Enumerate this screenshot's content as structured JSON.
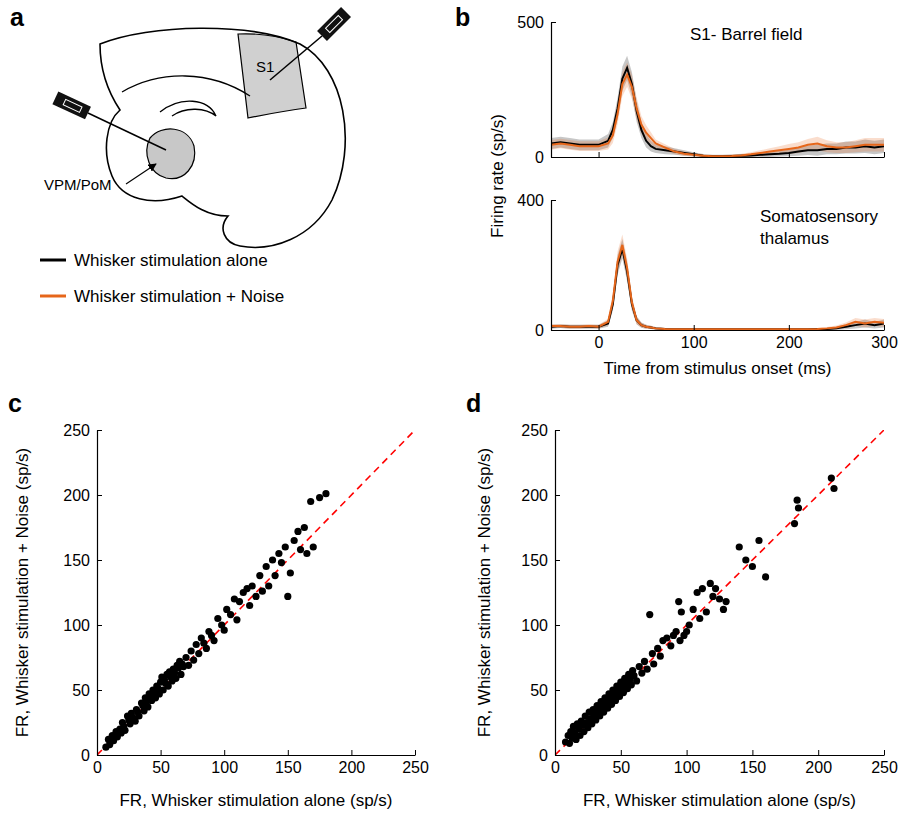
{
  "chart_data": [
    {
      "type": "line",
      "panel": "b",
      "annotation": [
        "S1- Barrel field"
      ],
      "y_label": "Firing rate (sp/s)",
      "x": [
        -50,
        -40,
        -30,
        -20,
        -10,
        0,
        10,
        15,
        20,
        25,
        30,
        35,
        40,
        45,
        50,
        55,
        60,
        70,
        80,
        90,
        100,
        110,
        120,
        130,
        140,
        150,
        160,
        170,
        180,
        190,
        200,
        210,
        220,
        230,
        240,
        250,
        260,
        270,
        280,
        290,
        300
      ],
      "xlim": [
        -50,
        300
      ],
      "xticks": [
        0,
        100,
        200,
        300
      ],
      "ylim": [
        0,
        500
      ],
      "yticks": [
        0,
        500
      ],
      "tick_labels": "y",
      "series": [
        {
          "name": "Whisker stimulation alone",
          "color": "#000000",
          "values": [
            50,
            55,
            50,
            45,
            45,
            45,
            60,
            100,
            180,
            290,
            330,
            270,
            170,
            100,
            60,
            40,
            30,
            25,
            20,
            15,
            10,
            5,
            3,
            3,
            4,
            5,
            6,
            8,
            10,
            12,
            15,
            20,
            25,
            25,
            30,
            30,
            35,
            35,
            40,
            35,
            40
          ],
          "error": [
            20,
            20,
            20,
            20,
            20,
            20,
            25,
            30,
            40,
            45,
            45,
            45,
            40,
            30,
            25,
            20,
            15,
            15,
            12,
            10,
            8,
            6,
            5,
            5,
            5,
            6,
            6,
            8,
            10,
            10,
            12,
            15,
            18,
            20,
            20,
            20,
            22,
            22,
            25,
            25,
            25
          ]
        },
        {
          "name": "Whisker stimulation + Noise",
          "color": "#e6661a",
          "values": [
            45,
            50,
            45,
            40,
            40,
            40,
            50,
            80,
            160,
            270,
            305,
            260,
            180,
            120,
            90,
            70,
            50,
            35,
            20,
            12,
            8,
            5,
            3,
            3,
            4,
            6,
            10,
            15,
            20,
            25,
            30,
            35,
            45,
            50,
            40,
            35,
            35,
            40,
            45,
            45,
            45
          ],
          "error": [
            18,
            18,
            18,
            18,
            18,
            18,
            22,
            28,
            38,
            45,
            45,
            45,
            40,
            32,
            28,
            22,
            15,
            12,
            10,
            8,
            6,
            5,
            4,
            4,
            5,
            6,
            8,
            10,
            12,
            15,
            18,
            20,
            22,
            25,
            22,
            20,
            20,
            22,
            25,
            25,
            25
          ]
        }
      ]
    },
    {
      "type": "line",
      "annotation": [
        "Somatosensory",
        "thalamus"
      ],
      "x_label": "Time from stimulus onset (ms)",
      "x": [
        -50,
        -40,
        -30,
        -20,
        -10,
        0,
        10,
        15,
        20,
        25,
        30,
        35,
        40,
        45,
        50,
        55,
        60,
        70,
        80,
        90,
        100,
        110,
        120,
        130,
        140,
        150,
        160,
        170,
        180,
        190,
        200,
        210,
        220,
        230,
        240,
        250,
        260,
        270,
        280,
        290,
        300
      ],
      "xlim": [
        -50,
        300
      ],
      "xticks": [
        0,
        100,
        200,
        300
      ],
      "ylim": [
        0,
        400
      ],
      "yticks": [
        0,
        400
      ],
      "series": [
        {
          "color": "#000000",
          "values": [
            10,
            12,
            10,
            10,
            10,
            10,
            20,
            80,
            200,
            250,
            180,
            80,
            30,
            15,
            10,
            8,
            5,
            3,
            2,
            2,
            2,
            2,
            2,
            2,
            2,
            2,
            2,
            2,
            2,
            2,
            2,
            2,
            2,
            3,
            3,
            5,
            10,
            15,
            20,
            15,
            20
          ],
          "error": [
            6,
            6,
            6,
            6,
            6,
            6,
            10,
            20,
            30,
            30,
            30,
            20,
            12,
            8,
            6,
            5,
            4,
            3,
            2,
            2,
            2,
            2,
            2,
            2,
            2,
            2,
            2,
            2,
            2,
            2,
            2,
            2,
            2,
            3,
            3,
            5,
            8,
            10,
            12,
            10,
            12
          ]
        },
        {
          "color": "#e6661a",
          "values": [
            12,
            12,
            10,
            10,
            12,
            10,
            25,
            90,
            210,
            262,
            190,
            85,
            30,
            15,
            10,
            8,
            5,
            3,
            2,
            2,
            2,
            2,
            2,
            2,
            2,
            2,
            2,
            2,
            2,
            2,
            2,
            2,
            2,
            3,
            5,
            8,
            15,
            25,
            20,
            25,
            22
          ],
          "error": [
            6,
            6,
            6,
            6,
            6,
            6,
            10,
            22,
            32,
            32,
            30,
            20,
            12,
            8,
            6,
            5,
            4,
            3,
            2,
            2,
            2,
            2,
            2,
            2,
            2,
            2,
            2,
            2,
            2,
            2,
            2,
            2,
            2,
            3,
            4,
            6,
            8,
            12,
            12,
            12,
            12
          ]
        }
      ]
    },
    {
      "type": "scatter",
      "panel": "c",
      "x_label": "FR, Whisker stimulation alone (sp/s)",
      "y_label": "FR, Whisker stimulation  + Noise (sp/s)",
      "xlim": [
        0,
        250
      ],
      "xticks": [
        0,
        50,
        100,
        150,
        200,
        250
      ],
      "ylim": [
        0,
        250
      ],
      "yticks": [
        0,
        50,
        100,
        150,
        200,
        250
      ],
      "series": [
        {
          "type": "scatter",
          "color": "#000000",
          "marker": "circle",
          "x": [
            7,
            9,
            10,
            12,
            13,
            15,
            16,
            18,
            19,
            20,
            21,
            22,
            24,
            25,
            26,
            27,
            28,
            30,
            31,
            32,
            33,
            35,
            36,
            37,
            38,
            39,
            40,
            41,
            42,
            43,
            44,
            45,
            46,
            47,
            48,
            49,
            50,
            51,
            52,
            53,
            54,
            55,
            56,
            57,
            58,
            59,
            60,
            61,
            62,
            63,
            64,
            65,
            66,
            67,
            68,
            70,
            72,
            74,
            76,
            78,
            80,
            82,
            84,
            86,
            88,
            90,
            92,
            95,
            98,
            100,
            102,
            105,
            108,
            110,
            112,
            115,
            118,
            120,
            122,
            125,
            128,
            130,
            133,
            135,
            138,
            140,
            143,
            145,
            148,
            150,
            152,
            155,
            158,
            160,
            163,
            165,
            168,
            170,
            175,
            180
          ],
          "values": [
            6,
            12,
            8,
            15,
            11,
            18,
            14,
            20,
            17,
            25,
            22,
            19,
            30,
            27,
            24,
            32,
            29,
            26,
            35,
            33,
            30,
            40,
            38,
            34,
            44,
            41,
            37,
            47,
            45,
            42,
            50,
            48,
            44,
            53,
            51,
            47,
            56,
            60,
            50,
            58,
            55,
            62,
            53,
            64,
            60,
            57,
            66,
            63,
            59,
            69,
            67,
            72,
            62,
            70,
            68,
            75,
            69,
            80,
            73,
            85,
            78,
            90,
            86,
            82,
            95,
            92,
            88,
            105,
            100,
            96,
            112,
            108,
            120,
            104,
            118,
            125,
            128,
            115,
            130,
            122,
            138,
            126,
            145,
            130,
            150,
            138,
            155,
            148,
            160,
            122,
            140,
            165,
            172,
            158,
            175,
            155,
            195,
            160,
            198,
            201
          ]
        },
        {
          "type": "line",
          "color": "#ff0000",
          "line_style": "dashed",
          "x": [
            0,
            250
          ],
          "values": [
            0,
            250
          ]
        }
      ]
    },
    {
      "type": "scatter",
      "panel": "d",
      "x_label": "FR, Whisker stimulation alone (sp/s)",
      "y_label": "FR, Whisker stimulation + Noise (sp/s)",
      "xlim": [
        0,
        250
      ],
      "xticks": [
        0,
        50,
        100,
        150,
        200,
        250
      ],
      "ylim": [
        0,
        250
      ],
      "yticks": [
        0,
        50,
        100,
        150,
        200,
        250
      ],
      "series": [
        {
          "type": "scatter",
          "color": "#000000",
          "marker": "circle",
          "x": [
            8,
            10,
            11,
            12,
            13,
            14,
            15,
            16,
            17,
            18,
            19,
            20,
            21,
            22,
            23,
            24,
            25,
            26,
            27,
            28,
            29,
            30,
            31,
            32,
            33,
            34,
            35,
            36,
            37,
            38,
            39,
            40,
            41,
            42,
            43,
            44,
            45,
            46,
            47,
            48,
            49,
            50,
            51,
            52,
            53,
            54,
            55,
            56,
            57,
            58,
            59,
            60,
            62,
            64,
            66,
            68,
            70,
            72,
            74,
            75,
            78,
            80,
            82,
            85,
            88,
            90,
            92,
            94,
            95,
            96,
            98,
            100,
            102,
            105,
            108,
            110,
            112,
            115,
            118,
            120,
            122,
            125,
            128,
            130,
            140,
            145,
            150,
            155,
            160,
            182,
            184,
            185,
            210,
            212
          ],
          "values": [
            10,
            15,
            9,
            18,
            13,
            22,
            17,
            12,
            24,
            20,
            15,
            26,
            23,
            18,
            30,
            25,
            21,
            33,
            28,
            24,
            35,
            31,
            27,
            38,
            34,
            30,
            41,
            37,
            33,
            44,
            40,
            36,
            47,
            43,
            39,
            50,
            46,
            42,
            53,
            49,
            45,
            56,
            52,
            48,
            59,
            55,
            51,
            62,
            58,
            54,
            65,
            61,
            57,
            68,
            63,
            72,
            66,
            108,
            78,
            70,
            82,
            76,
            88,
            90,
            84,
            92,
            95,
            118,
            88,
            110,
            92,
            95,
            100,
            112,
            125,
            105,
            128,
            110,
            132,
            122,
            128,
            120,
            112,
            118,
            160,
            150,
            145,
            165,
            137,
            178,
            196,
            190,
            213,
            205
          ]
        },
        {
          "type": "line",
          "color": "#ff0000",
          "line_style": "dashed",
          "x": [
            0,
            250
          ],
          "values": [
            0,
            250
          ]
        }
      ]
    }
  ],
  "diagram": {
    "panel": "a",
    "labels": {
      "cortex": "S1",
      "thalamus": "VPM/PoM"
    }
  }
}
